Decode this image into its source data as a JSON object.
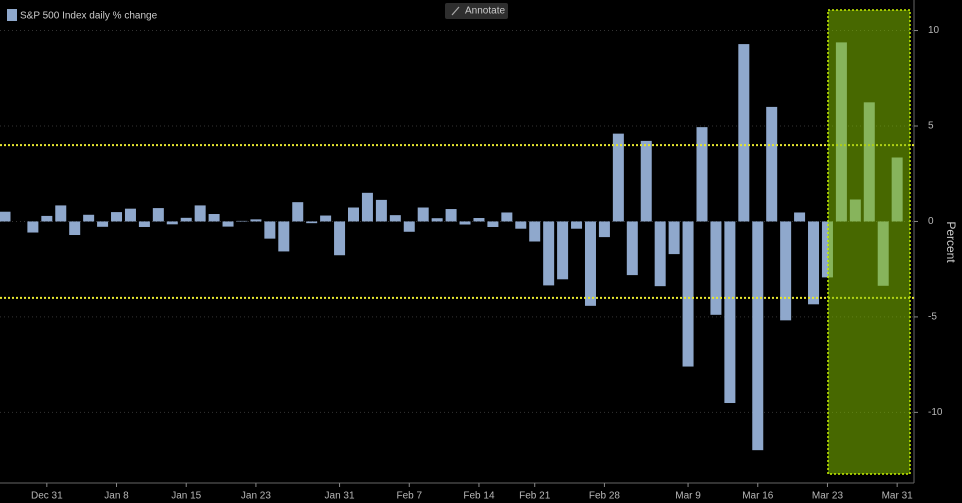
{
  "chart_data": {
    "type": "bar",
    "legend": "S&P 500 Index daily % change",
    "button": "Annotate",
    "ylabel": "Percent",
    "color": "#8fa8cc",
    "categories": [
      null,
      null,
      null,
      "Dec 31",
      null,
      null,
      null,
      null,
      "Jan 8",
      null,
      null,
      null,
      null,
      "Jan 15",
      null,
      null,
      null,
      null,
      "Jan 23",
      null,
      null,
      null,
      null,
      null,
      "Jan 31",
      null,
      null,
      null,
      null,
      "Feb 7",
      null,
      null,
      null,
      null,
      "Feb 14",
      null,
      null,
      null,
      "Feb 21",
      null,
      null,
      null,
      null,
      "Feb 28",
      null,
      null,
      null,
      null,
      null,
      "Mar 9",
      null,
      null,
      null,
      null,
      "Mar 16",
      null,
      null,
      null,
      null,
      "Mar 23",
      null,
      null,
      null,
      null,
      "Mar 31"
    ],
    "values": [
      0.51,
      0.0,
      -0.58,
      0.29,
      0.84,
      -0.71,
      0.35,
      -0.28,
      0.49,
      0.67,
      -0.29,
      0.7,
      -0.15,
      0.19,
      0.84,
      0.39,
      -0.27,
      0.03,
      0.11,
      -0.9,
      -1.57,
      1.01,
      -0.09,
      0.31,
      -1.77,
      0.73,
      1.5,
      1.13,
      0.33,
      -0.54,
      0.73,
      0.17,
      0.65,
      -0.16,
      0.18,
      -0.29,
      0.47,
      -0.38,
      -1.05,
      -3.35,
      -3.03,
      -0.38,
      -4.42,
      -0.82,
      4.6,
      -2.81,
      4.22,
      -3.39,
      -1.71,
      -7.6,
      4.94,
      -4.89,
      -9.51,
      9.29,
      -11.98,
      6.0,
      -5.18,
      0.47,
      -4.34,
      -2.93,
      9.38,
      1.15,
      6.24,
      -3.37,
      3.35
    ],
    "ylim": [
      -13.7,
      11.6
    ],
    "yticks": [
      10,
      5,
      0,
      -5,
      -10
    ],
    "reference_lines": [
      4,
      -4
    ],
    "reference_color": "#e8e830"
  }
}
